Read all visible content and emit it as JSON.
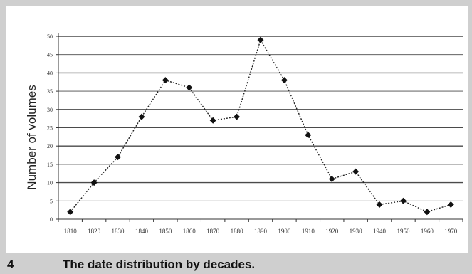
{
  "chart_data": {
    "type": "line",
    "ylabel": "Number of volumes",
    "xlabel": "",
    "categories": [
      "1810",
      "1820",
      "1830",
      "1840",
      "1850",
      "1860",
      "1870",
      "1880",
      "1890",
      "1900",
      "1910",
      "1920",
      "1930",
      "1940",
      "1950",
      "1960",
      "1970"
    ],
    "y_ticks": [
      "0",
      "5",
      "10",
      "15",
      "20",
      "25",
      "30",
      "35",
      "40",
      "45",
      "50"
    ],
    "ylim": [
      0,
      50
    ],
    "series": [
      {
        "values": [
          2,
          10,
          17,
          28,
          38,
          36,
          27,
          28,
          49,
          38,
          23,
          11,
          13,
          4,
          5,
          2,
          4
        ]
      }
    ],
    "grid": "horizontal",
    "line_style": "dotted",
    "colors": {
      "line": "#222222",
      "marker": "#111111",
      "grid": "#4a4a4a"
    }
  },
  "caption": {
    "number": "4",
    "text": "The date distribution by decades."
  }
}
